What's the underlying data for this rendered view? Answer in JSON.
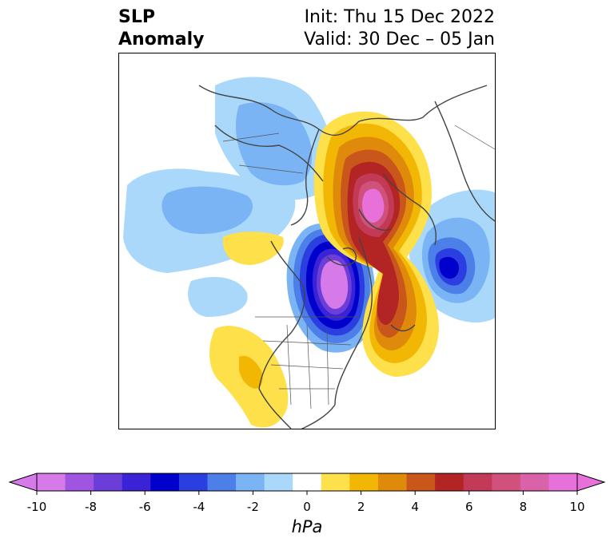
{
  "title": {
    "left_line1": "SLP",
    "left_line2": "Anomaly",
    "right_line1": "Init: Thu 15 Dec 2022",
    "right_line2": "Valid: 30 Dec – 05 Jan"
  },
  "colorbar": {
    "label": "hPa",
    "ticks": [
      "-10",
      "-8",
      "-6",
      "-4",
      "-2",
      "0",
      "2",
      "4",
      "6",
      "8",
      "10"
    ],
    "levels": [
      -10,
      -9,
      -8,
      -7,
      -6,
      -5,
      -4,
      -3,
      -2,
      -1,
      1,
      2,
      3,
      4,
      5,
      6,
      7,
      8,
      9,
      10
    ],
    "colors": [
      "#d57ae8",
      "#9f55e0",
      "#6b3dd9",
      "#3a22d6",
      "#0000cd",
      "#2b3fe0",
      "#4d7fe8",
      "#7ab4f4",
      "#a9d8fa",
      "#ffffff",
      "#fde04a",
      "#f2b705",
      "#e08a0c",
      "#c9561a",
      "#b32424",
      "#c23a56",
      "#cf517c",
      "#d962a8",
      "#e870d9"
    ],
    "extend_min_color": "#d57ae8",
    "extend_max_color": "#e870d9"
  },
  "map": {
    "projection": "north-polar-stereographic",
    "features": [
      "coastlines",
      "country-borders",
      "state-borders"
    ]
  }
}
